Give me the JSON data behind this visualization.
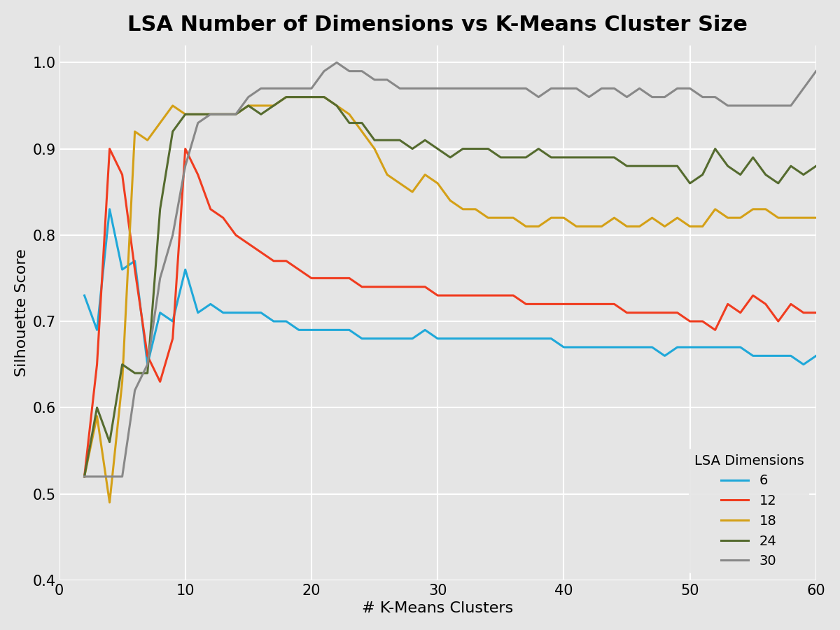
{
  "title": "LSA Number of Dimensions vs K-Means Cluster Size",
  "xlabel": "# K-Means Clusters",
  "ylabel": "Silhouette Score",
  "xlim": [
    0,
    60
  ],
  "ylim": [
    0.4,
    1.02
  ],
  "xticks": [
    0,
    10,
    20,
    30,
    40,
    50,
    60
  ],
  "yticks": [
    0.4,
    0.5,
    0.6,
    0.7,
    0.8,
    0.9,
    1.0
  ],
  "background_color": "#e5e5e5",
  "plot_bg_color": "#e5e5e5",
  "grid_color": "#ffffff",
  "title_fontsize": 22,
  "label_fontsize": 16,
  "tick_fontsize": 15,
  "legend_title": "LSA Dimensions",
  "legend_labels": [
    "6",
    "12",
    "18",
    "24",
    "30"
  ],
  "line_colors": [
    "#1fa8d9",
    "#f03c1f",
    "#d4a017",
    "#556b2f",
    "#888888"
  ],
  "line_widths": [
    2.2,
    2.2,
    2.2,
    2.2,
    2.2
  ],
  "series_6": [
    0.73,
    0.69,
    0.83,
    0.76,
    0.77,
    0.65,
    0.71,
    0.7,
    0.76,
    0.71,
    0.72,
    0.71,
    0.71,
    0.71,
    0.71,
    0.7,
    0.7,
    0.69,
    0.69,
    0.69,
    0.69,
    0.69,
    0.68,
    0.68,
    0.68,
    0.68,
    0.68,
    0.69,
    0.68,
    0.68,
    0.68,
    0.68,
    0.68,
    0.68,
    0.68,
    0.68,
    0.68,
    0.68,
    0.67,
    0.67,
    0.67,
    0.67,
    0.67,
    0.67,
    0.67,
    0.67,
    0.66,
    0.67,
    0.67,
    0.67,
    0.67,
    0.67,
    0.67,
    0.66,
    0.66,
    0.66,
    0.66,
    0.65,
    0.66
  ],
  "series_12": [
    0.52,
    0.65,
    0.9,
    0.87,
    0.76,
    0.66,
    0.63,
    0.68,
    0.9,
    0.87,
    0.83,
    0.82,
    0.8,
    0.79,
    0.78,
    0.77,
    0.77,
    0.76,
    0.75,
    0.75,
    0.75,
    0.75,
    0.74,
    0.74,
    0.74,
    0.74,
    0.74,
    0.74,
    0.73,
    0.73,
    0.73,
    0.73,
    0.73,
    0.73,
    0.73,
    0.72,
    0.72,
    0.72,
    0.72,
    0.72,
    0.72,
    0.72,
    0.72,
    0.71,
    0.71,
    0.71,
    0.71,
    0.71,
    0.7,
    0.7,
    0.69,
    0.72,
    0.71,
    0.73,
    0.72,
    0.7,
    0.72,
    0.71,
    0.71
  ],
  "series_18": [
    0.52,
    0.59,
    0.49,
    0.63,
    0.92,
    0.91,
    0.93,
    0.95,
    0.94,
    0.94,
    0.94,
    0.94,
    0.94,
    0.95,
    0.95,
    0.95,
    0.96,
    0.96,
    0.96,
    0.96,
    0.95,
    0.94,
    0.92,
    0.9,
    0.87,
    0.86,
    0.85,
    0.87,
    0.86,
    0.84,
    0.83,
    0.83,
    0.82,
    0.82,
    0.82,
    0.81,
    0.81,
    0.82,
    0.82,
    0.81,
    0.81,
    0.81,
    0.82,
    0.81,
    0.81,
    0.82,
    0.81,
    0.82,
    0.81,
    0.81,
    0.83,
    0.82,
    0.82,
    0.83,
    0.83,
    0.82,
    0.82,
    0.82,
    0.82
  ],
  "series_24": [
    0.52,
    0.6,
    0.56,
    0.65,
    0.64,
    0.64,
    0.83,
    0.92,
    0.94,
    0.94,
    0.94,
    0.94,
    0.94,
    0.95,
    0.94,
    0.95,
    0.96,
    0.96,
    0.96,
    0.96,
    0.95,
    0.93,
    0.93,
    0.91,
    0.91,
    0.91,
    0.9,
    0.91,
    0.9,
    0.89,
    0.9,
    0.9,
    0.9,
    0.89,
    0.89,
    0.89,
    0.9,
    0.89,
    0.89,
    0.89,
    0.89,
    0.89,
    0.89,
    0.88,
    0.88,
    0.88,
    0.88,
    0.88,
    0.86,
    0.87,
    0.9,
    0.88,
    0.87,
    0.89,
    0.87,
    0.86,
    0.88,
    0.87,
    0.88
  ],
  "series_30": [
    0.52,
    0.52,
    0.52,
    0.52,
    0.62,
    0.65,
    0.75,
    0.8,
    0.88,
    0.93,
    0.94,
    0.94,
    0.94,
    0.96,
    0.97,
    0.97,
    0.97,
    0.97,
    0.97,
    0.99,
    1.0,
    0.99,
    0.99,
    0.98,
    0.98,
    0.97,
    0.97,
    0.97,
    0.97,
    0.97,
    0.97,
    0.97,
    0.97,
    0.97,
    0.97,
    0.97,
    0.96,
    0.97,
    0.97,
    0.97,
    0.96,
    0.97,
    0.97,
    0.96,
    0.97,
    0.96,
    0.96,
    0.97,
    0.97,
    0.96,
    0.96,
    0.95,
    0.95,
    0.95,
    0.95,
    0.95,
    0.95,
    0.97,
    0.99
  ]
}
